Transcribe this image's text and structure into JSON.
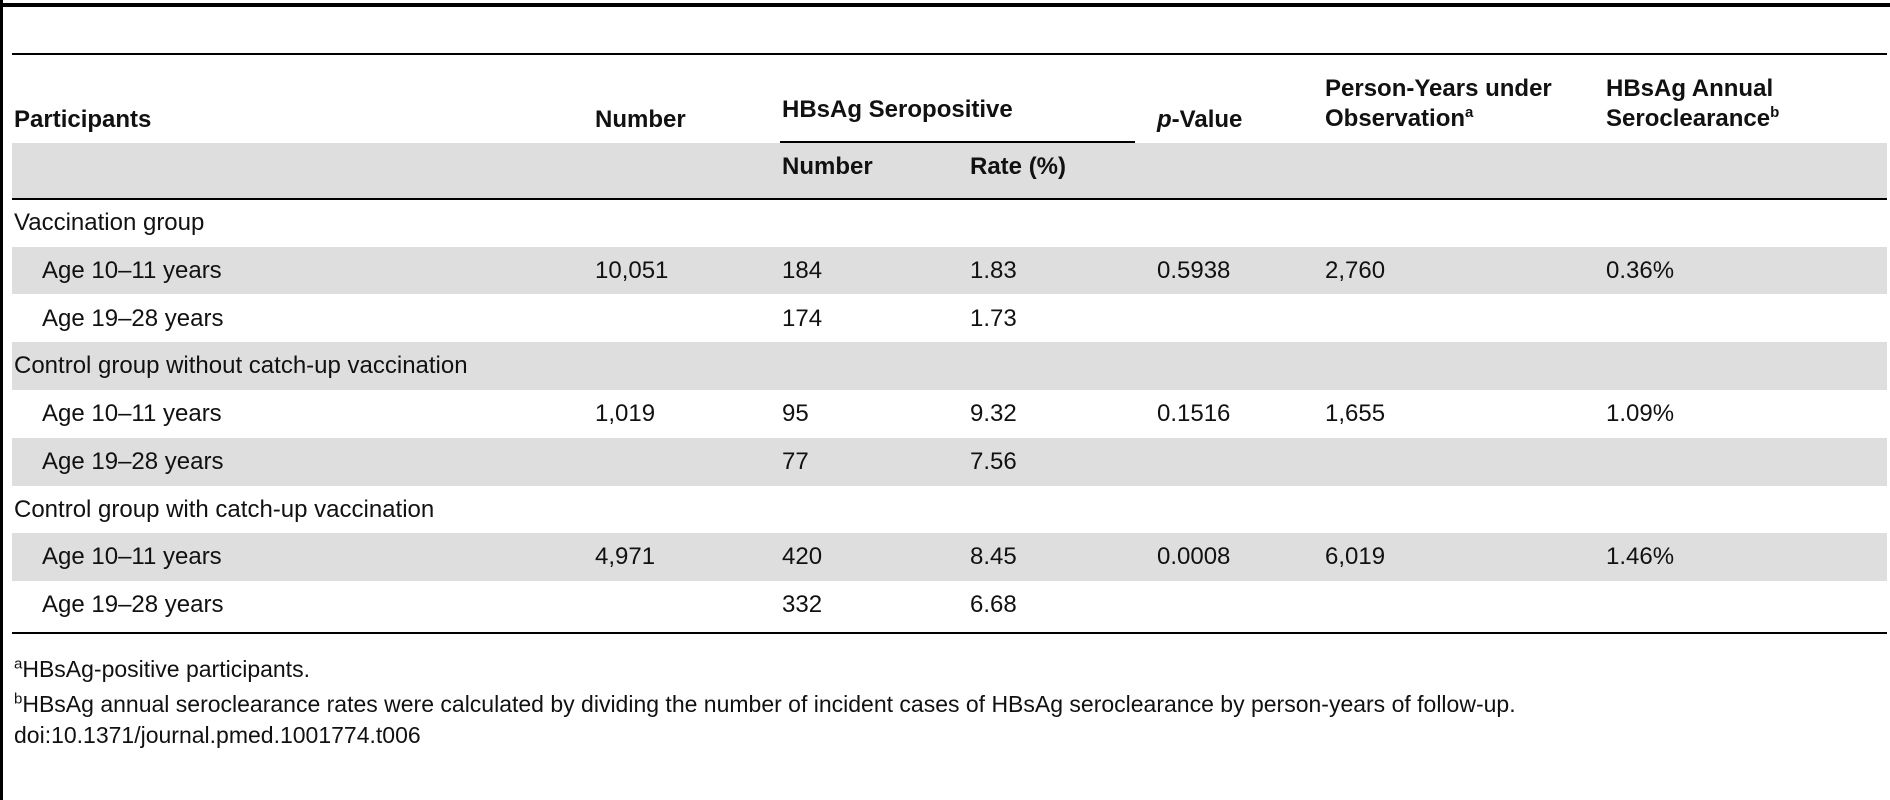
{
  "header": {
    "participants": "Participants",
    "number": "Number",
    "hbsag_seropositive": "HBsAg Seropositive",
    "sub_number": "Number",
    "sub_rate": "Rate (%)",
    "p_prefix": "p",
    "p_suffix": "-Value",
    "person_years_line1": "Person-Years under",
    "person_years_line2": "Observation",
    "person_years_sup": "a",
    "seroclearance_line1": "HBsAg Annual",
    "seroclearance_line2": "Seroclearance",
    "seroclearance_sup": "b"
  },
  "groups": [
    {
      "label": "Vaccination group",
      "rows": [
        {
          "age": "Age 10–11 years",
          "number": "10,051",
          "sero_number": "184",
          "rate": "1.83",
          "p": "0.5938",
          "person_years": "2,760",
          "seroclearance": "0.36%"
        },
        {
          "age": "Age 19–28 years",
          "number": "",
          "sero_number": "174",
          "rate": "1.73",
          "p": "",
          "person_years": "",
          "seroclearance": ""
        }
      ]
    },
    {
      "label": "Control group without catch-up vaccination",
      "rows": [
        {
          "age": "Age 10–11 years",
          "number": "1,019",
          "sero_number": "95",
          "rate": "9.32",
          "p": "0.1516",
          "person_years": "1,655",
          "seroclearance": "1.09%"
        },
        {
          "age": "Age 19–28 years",
          "number": "",
          "sero_number": "77",
          "rate": "7.56",
          "p": "",
          "person_years": "",
          "seroclearance": ""
        }
      ]
    },
    {
      "label": "Control group with catch-up vaccination",
      "rows": [
        {
          "age": "Age 10–11 years",
          "number": "4,971",
          "sero_number": "420",
          "rate": "8.45",
          "p": "0.0008",
          "person_years": "6,019",
          "seroclearance": "1.46%"
        },
        {
          "age": "Age 19–28 years",
          "number": "",
          "sero_number": "332",
          "rate": "6.68",
          "p": "",
          "person_years": "",
          "seroclearance": ""
        }
      ]
    }
  ],
  "footnotes": {
    "a_mark": "a",
    "a_text": "HBsAg-positive participants.",
    "b_mark": "b",
    "b_text": "HBsAg annual seroclearance rates were calculated by dividing the number of incident cases of HBsAg seroclearance by person-years of follow-up.",
    "doi": "doi:10.1371/journal.pmed.1001774.t006"
  }
}
